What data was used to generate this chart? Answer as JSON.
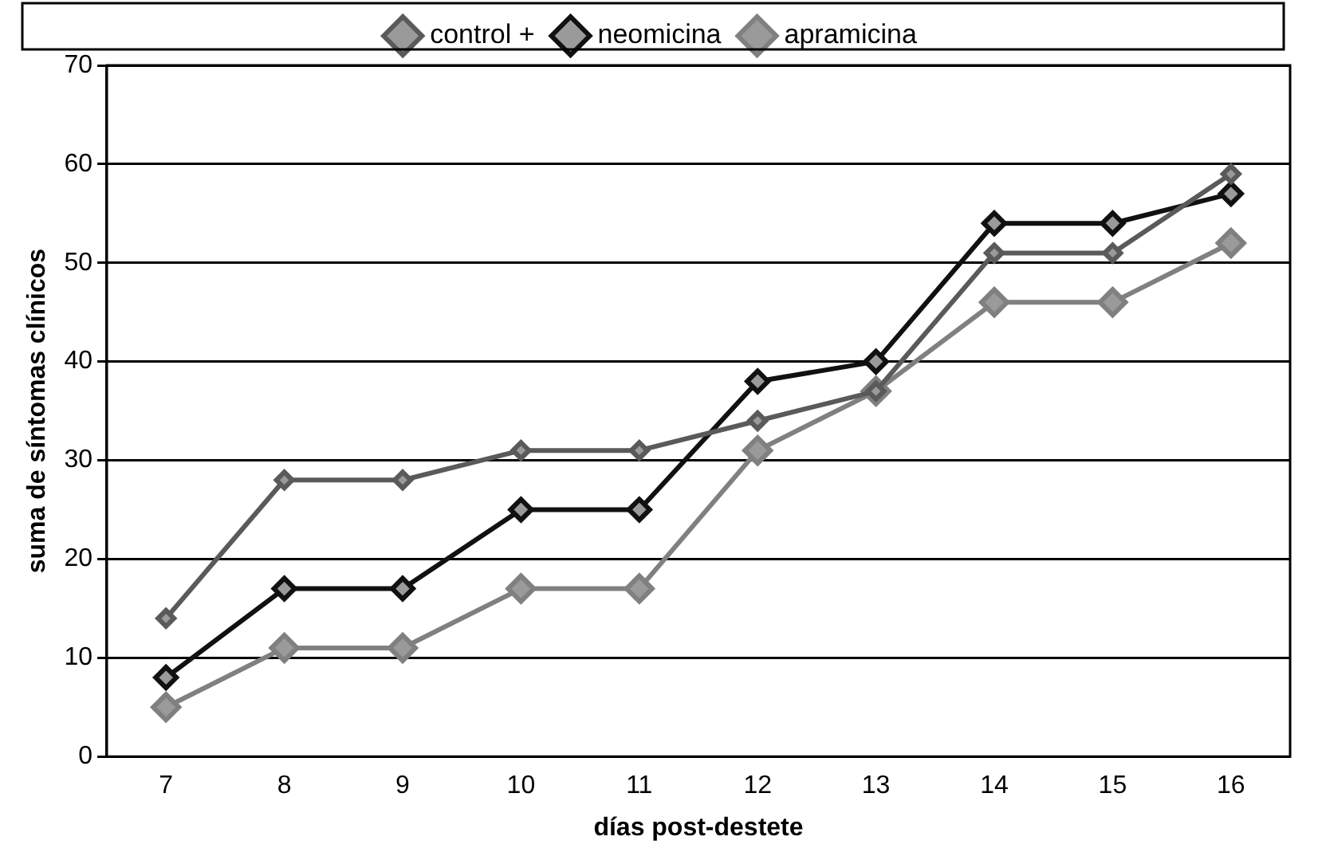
{
  "chart_data": {
    "type": "line",
    "xlabel": "días post-destete",
    "ylabel": "suma de síntomas clínicos",
    "categories": [
      "7",
      "8",
      "9",
      "10",
      "11",
      "12",
      "13",
      "14",
      "15",
      "16"
    ],
    "series": [
      {
        "name": "control +",
        "color": "#5a5a5a",
        "values": [
          14,
          28,
          28,
          31,
          31,
          34,
          37,
          51,
          51,
          59
        ]
      },
      {
        "name": "neomicina",
        "color": "#111111",
        "values": [
          8,
          17,
          17,
          25,
          25,
          38,
          40,
          54,
          54,
          57
        ]
      },
      {
        "name": "apramicina",
        "color": "#808080",
        "values": [
          5,
          11,
          11,
          17,
          17,
          31,
          37,
          46,
          46,
          52
        ]
      }
    ],
    "ylim": [
      0,
      70
    ],
    "yticks": [
      0,
      10,
      20,
      30,
      40,
      50,
      60,
      70
    ],
    "grid": "y",
    "legend": "top",
    "marker": "diamond",
    "line_style": "solid"
  }
}
